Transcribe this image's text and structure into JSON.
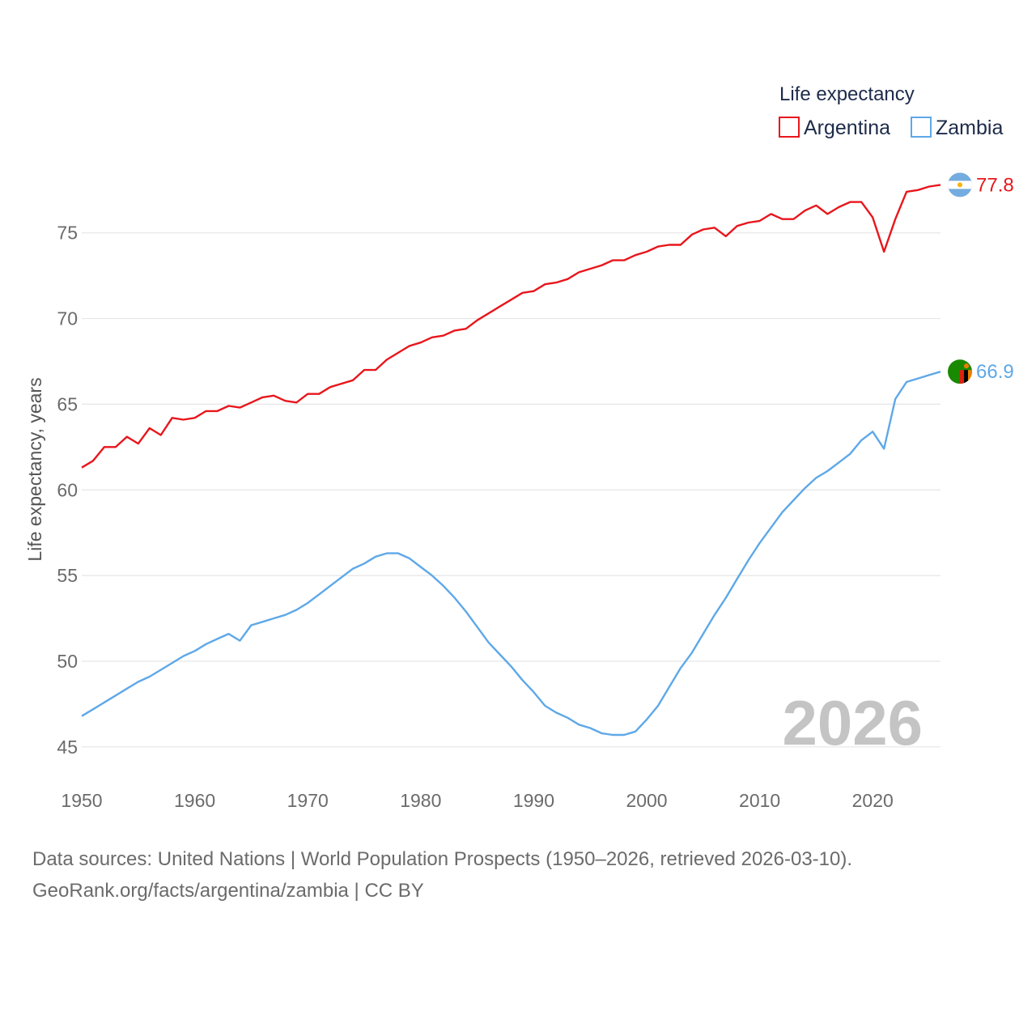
{
  "chart_data": {
    "type": "line",
    "legend_title": "Life expectancy",
    "ylabel": "Life expectancy, years",
    "xlim": [
      1950,
      2026
    ],
    "ylim": [
      44,
      79
    ],
    "xticks": [
      1950,
      1960,
      1970,
      1980,
      1990,
      2000,
      2010,
      2020
    ],
    "yticks": [
      45,
      50,
      55,
      60,
      65,
      70,
      75
    ],
    "year_label": "2026",
    "series": [
      {
        "name": "Argentina",
        "color": "#e8161c",
        "end_label": "77.8",
        "flag": "argentina-flag",
        "x": [
          1950,
          1951,
          1952,
          1953,
          1954,
          1955,
          1956,
          1957,
          1958,
          1959,
          1960,
          1961,
          1962,
          1963,
          1964,
          1965,
          1966,
          1967,
          1968,
          1969,
          1970,
          1971,
          1972,
          1973,
          1974,
          1975,
          1976,
          1977,
          1978,
          1979,
          1980,
          1981,
          1982,
          1983,
          1984,
          1985,
          1986,
          1987,
          1988,
          1989,
          1990,
          1991,
          1992,
          1993,
          1994,
          1995,
          1996,
          1997,
          1998,
          1999,
          2000,
          2001,
          2002,
          2003,
          2004,
          2005,
          2006,
          2007,
          2008,
          2009,
          2010,
          2011,
          2012,
          2013,
          2014,
          2015,
          2016,
          2017,
          2018,
          2019,
          2020,
          2021,
          2022,
          2023,
          2024,
          2025,
          2026
        ],
        "values": [
          61.3,
          61.7,
          62.5,
          62.5,
          63.1,
          62.7,
          63.6,
          63.2,
          64.2,
          64.1,
          64.2,
          64.6,
          64.6,
          64.9,
          64.8,
          65.1,
          65.4,
          65.5,
          65.2,
          65.1,
          65.6,
          65.6,
          66.0,
          66.2,
          66.4,
          67.0,
          67.0,
          67.6,
          68.0,
          68.4,
          68.6,
          68.9,
          69.0,
          69.3,
          69.4,
          69.9,
          70.3,
          70.7,
          71.1,
          71.5,
          71.6,
          72.0,
          72.1,
          72.3,
          72.7,
          72.9,
          73.1,
          73.4,
          73.4,
          73.7,
          73.9,
          74.2,
          74.3,
          74.3,
          74.9,
          75.2,
          75.3,
          74.8,
          75.4,
          75.6,
          75.7,
          76.1,
          75.8,
          75.8,
          76.3,
          76.6,
          76.1,
          76.5,
          76.8,
          76.8,
          75.9,
          73.9,
          75.8,
          77.4,
          77.5,
          77.7,
          77.8
        ]
      },
      {
        "name": "Zambia",
        "color": "#5ea8e8",
        "end_label": "66.9",
        "flag": "zambia-flag",
        "x": [
          1950,
          1951,
          1952,
          1953,
          1954,
          1955,
          1956,
          1957,
          1958,
          1959,
          1960,
          1961,
          1962,
          1963,
          1964,
          1965,
          1966,
          1967,
          1968,
          1969,
          1970,
          1971,
          1972,
          1973,
          1974,
          1975,
          1976,
          1977,
          1978,
          1979,
          1980,
          1981,
          1982,
          1983,
          1984,
          1985,
          1986,
          1987,
          1988,
          1989,
          1990,
          1991,
          1992,
          1993,
          1994,
          1995,
          1996,
          1997,
          1998,
          1999,
          2000,
          2001,
          2002,
          2003,
          2004,
          2005,
          2006,
          2007,
          2008,
          2009,
          2010,
          2011,
          2012,
          2013,
          2014,
          2015,
          2016,
          2017,
          2018,
          2019,
          2020,
          2021,
          2022,
          2023,
          2024,
          2025,
          2026
        ],
        "values": [
          46.8,
          47.2,
          47.6,
          48.0,
          48.4,
          48.8,
          49.1,
          49.5,
          49.9,
          50.3,
          50.6,
          51.0,
          51.3,
          51.6,
          51.2,
          52.1,
          52.3,
          52.5,
          52.7,
          53.0,
          53.4,
          53.9,
          54.4,
          54.9,
          55.4,
          55.7,
          56.1,
          56.3,
          56.3,
          56.0,
          55.5,
          55.0,
          54.4,
          53.7,
          52.9,
          52.0,
          51.1,
          50.4,
          49.7,
          48.9,
          48.2,
          47.4,
          47.0,
          46.7,
          46.3,
          46.1,
          45.8,
          45.7,
          45.7,
          45.9,
          46.6,
          47.4,
          48.5,
          49.6,
          50.5,
          51.6,
          52.7,
          53.7,
          54.8,
          55.9,
          56.9,
          57.8,
          58.7,
          59.4,
          60.1,
          60.7,
          61.1,
          61.6,
          62.1,
          62.9,
          63.4,
          62.4,
          65.3,
          66.3,
          66.5,
          66.7,
          66.9
        ]
      }
    ]
  },
  "source": {
    "line1": "Data sources: United Nations | World Population Prospects (1950–2026, retrieved 2026-03-10).",
    "line2": "GeoRank.org/facts/argentina/zambia | CC BY"
  }
}
